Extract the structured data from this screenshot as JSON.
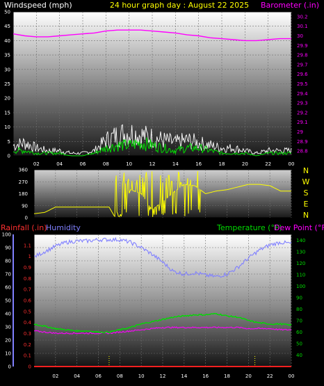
{
  "header": {
    "wind_label": "Windspeed (mph)",
    "graph_title": "24 hour graph day : August 22 2025",
    "baro_label": "Barometer (.in)"
  },
  "middle": {
    "compass_letters": [
      "N",
      "W",
      "S",
      "E",
      "N"
    ]
  },
  "bottom_header": {
    "rain_label": "Rainfall (.in)",
    "humidity_label": "Humidity",
    "temp_label": "Temperature (°F)",
    "dew_label": "Dew Point (°F)"
  },
  "colors": {
    "wind_gust": "#ffffff",
    "wind_avg": "#00dd00",
    "barometer": "#ff00ff",
    "direction": "#ffff00",
    "humidity": "#8080ff",
    "temperature": "#00dd00",
    "dewpoint": "#ff00ff",
    "rainfall": "#ff2020"
  },
  "chart_data": [
    {
      "type": "line",
      "title": "",
      "x_axis_ticks": [
        "02",
        "04",
        "06",
        "08",
        "10",
        "12",
        "14",
        "16",
        "18",
        "20",
        "22",
        "00"
      ],
      "y_left_ticks": [
        "0",
        "5",
        "10",
        "15",
        "20",
        "25",
        "30",
        "35",
        "40",
        "45",
        "50"
      ],
      "y_right_ticks": [
        "28.8",
        "28.9",
        "29",
        "29.1",
        "29.2",
        "29.3",
        "29.4",
        "29.5",
        "29.6",
        "29.7",
        "29.8",
        "29.9",
        "30",
        "30.1",
        "30.2"
      ],
      "ylim_left": [
        0,
        50
      ],
      "ylim_right": [
        28.75,
        30.25
      ],
      "x": [
        0,
        1,
        2,
        3,
        4,
        5,
        6,
        7,
        8,
        9,
        10,
        11,
        12,
        13,
        14,
        15,
        16,
        17,
        18,
        19,
        20,
        21,
        22,
        23,
        24
      ],
      "series": [
        {
          "name": "Windspeed (mph)",
          "axis": "left",
          "style": "spiky",
          "values": [
            2,
            2,
            1,
            1,
            1,
            0,
            0,
            1,
            3,
            4,
            4,
            5,
            4,
            3,
            2,
            3,
            3,
            2,
            1,
            1,
            1,
            0,
            1,
            1,
            1
          ]
        },
        {
          "name": "Wind Gust (mph)",
          "axis": "left",
          "style": "spiky",
          "values": [
            4,
            5,
            3,
            2,
            2,
            1,
            1,
            2,
            6,
            8,
            9,
            8,
            7,
            6,
            5,
            6,
            5,
            4,
            3,
            3,
            2,
            1,
            2,
            2,
            2
          ]
        },
        {
          "name": "Barometer (.in)",
          "axis": "right",
          "values": [
            30.02,
            30.0,
            29.99,
            29.99,
            30.0,
            30.01,
            30.02,
            30.03,
            30.05,
            30.06,
            30.06,
            30.06,
            30.05,
            30.04,
            30.03,
            30.01,
            30.0,
            29.98,
            29.97,
            29.96,
            29.95,
            29.95,
            29.96,
            29.97,
            29.97
          ]
        }
      ]
    },
    {
      "type": "line",
      "title": "",
      "y_ticks": [
        "0",
        "90",
        "180",
        "270",
        "360"
      ],
      "ylim": [
        0,
        360
      ],
      "x": [
        0,
        1,
        2,
        3,
        4,
        5,
        6,
        7,
        7.5,
        8,
        9,
        10,
        11,
        12,
        13,
        14,
        15,
        16,
        17,
        18,
        19,
        20,
        21,
        22,
        23,
        24
      ],
      "series": [
        {
          "name": "Wind Direction",
          "style": "erratic",
          "values": [
            30,
            40,
            80,
            80,
            80,
            80,
            80,
            80,
            10,
            10,
            210,
            180,
            60,
            120,
            190,
            250,
            240,
            180,
            200,
            210,
            230,
            250,
            250,
            240,
            200,
            200
          ]
        }
      ]
    },
    {
      "type": "line",
      "title": "",
      "y_left_humidity_ticks": [
        "0",
        "10",
        "20",
        "30",
        "40",
        "50",
        "60",
        "70",
        "80",
        "90",
        "100"
      ],
      "y_left_rain_ticks": [
        "0",
        "0.1",
        "0.2",
        "0.3",
        "0.4",
        "0.5",
        "0.6",
        "0.7",
        "0.8",
        "0.9",
        "1",
        "1.1"
      ],
      "y_right_ticks": [
        "40",
        "50",
        "60",
        "70",
        "80",
        "90",
        "100",
        "110",
        "120",
        "130",
        "140"
      ],
      "ylim_humidity": [
        0,
        100
      ],
      "ylim_rain": [
        0,
        1.2
      ],
      "ylim_temp": [
        30,
        145
      ],
      "x": [
        0,
        1,
        2,
        3,
        4,
        5,
        6,
        7,
        8,
        9,
        10,
        11,
        12,
        13,
        14,
        15,
        16,
        17,
        18,
        19,
        20,
        21,
        22,
        23,
        24
      ],
      "series": [
        {
          "name": "Humidity",
          "axis": "humidity",
          "values": [
            83,
            87,
            91,
            94,
            95,
            95,
            96,
            96,
            96,
            94,
            90,
            85,
            79,
            72,
            70,
            71,
            69,
            68,
            70,
            75,
            82,
            88,
            92,
            94,
            93
          ]
        },
        {
          "name": "Temperature (°F)",
          "axis": "temp",
          "values": [
            67,
            65,
            63,
            62,
            61,
            61,
            60,
            60,
            62,
            64,
            67,
            69,
            71,
            73,
            74,
            75,
            75,
            76,
            74,
            73,
            70,
            68,
            67,
            67,
            66
          ]
        },
        {
          "name": "Dew Point (°F)",
          "axis": "temp",
          "values": [
            61,
            60,
            59,
            59,
            59,
            59,
            59,
            59,
            60,
            61,
            62,
            63,
            64,
            64,
            64,
            64,
            64,
            64,
            64,
            64,
            63,
            63,
            63,
            62,
            62
          ]
        },
        {
          "name": "Rainfall (.in)",
          "axis": "rain",
          "values": [
            0,
            0,
            0,
            0,
            0,
            0,
            0,
            0,
            0,
            0,
            0,
            0,
            0,
            0,
            0,
            0,
            0,
            0,
            0,
            0,
            0,
            0,
            0,
            0,
            0
          ]
        }
      ]
    }
  ]
}
